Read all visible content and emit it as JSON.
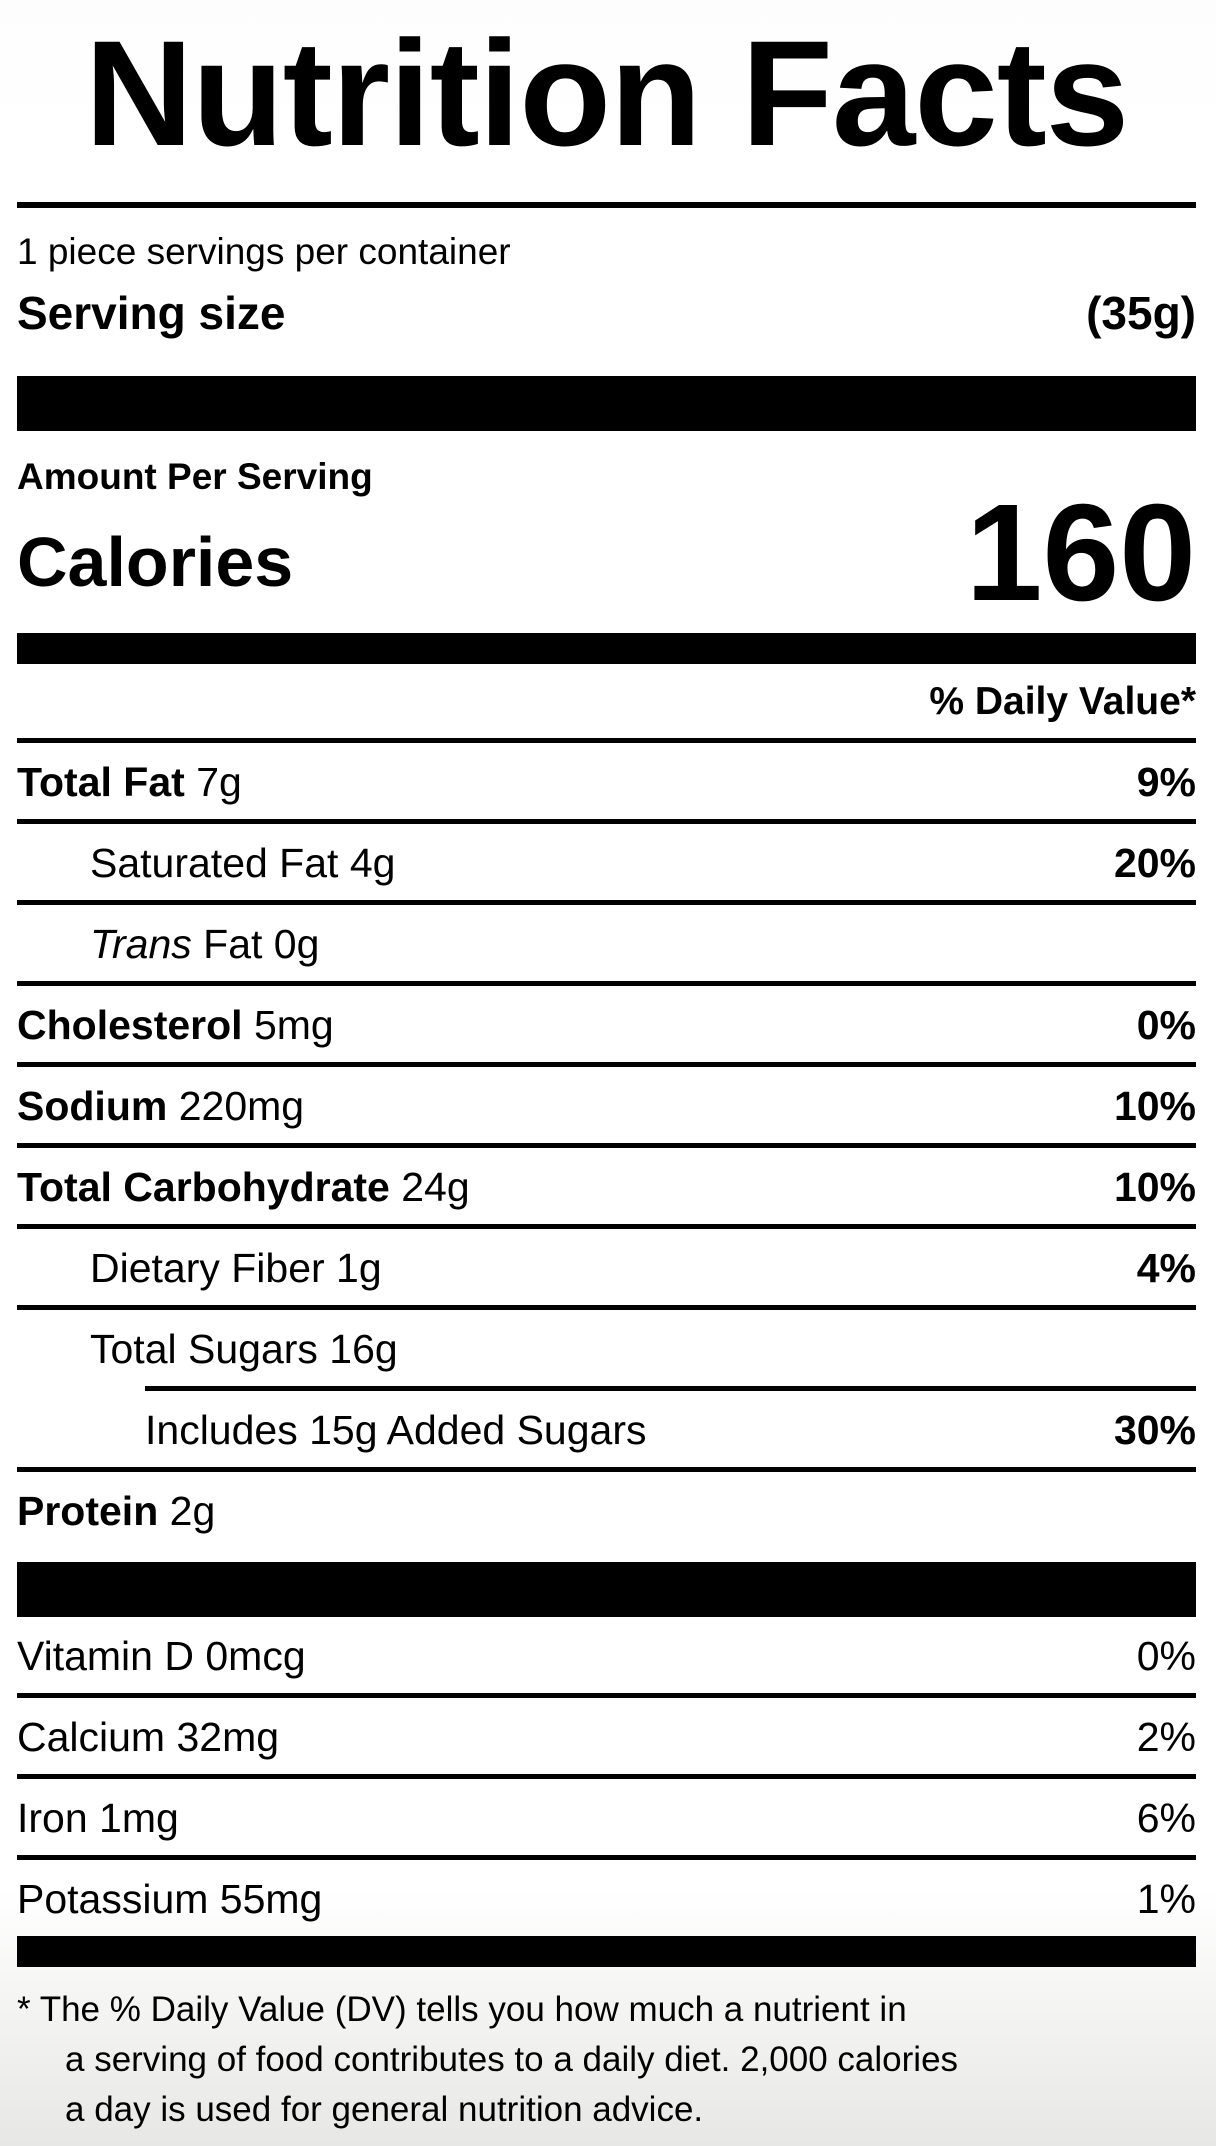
{
  "label": {
    "title": "Nutrition Facts",
    "servings_per_container": "1 piece servings per container",
    "serving_size_label": "Serving size",
    "serving_size_value": "(35g)",
    "amount_per_serving": "Amount Per Serving",
    "calories_label": "Calories",
    "calories_value": "160",
    "daily_value_header": "% Daily Value*",
    "rows": [
      {
        "bold": "Total Fat",
        "rest": " 7g",
        "dv": "9%"
      },
      {
        "bold": "",
        "rest": "Saturated Fat 4g",
        "dv": "20%"
      },
      {
        "bold": "",
        "italic": "Trans",
        "rest": " Fat 0g",
        "dv": ""
      },
      {
        "bold": "Cholesterol",
        "rest": " 5mg",
        "dv": "0%"
      },
      {
        "bold": "Sodium",
        "rest": " 220mg",
        "dv": "10%"
      },
      {
        "bold": "Total Carbohydrate",
        "rest": " 24g",
        "dv": "10%"
      },
      {
        "bold": "",
        "rest": "Dietary Fiber 1g",
        "dv": "4%"
      },
      {
        "bold": "",
        "rest": "Total Sugars 16g",
        "dv": ""
      },
      {
        "bold": "",
        "rest": "Includes 15g Added Sugars",
        "dv": "30%"
      },
      {
        "bold": "Protein",
        "rest": " 2g",
        "dv": ""
      }
    ],
    "vitamins": [
      {
        "name": "Vitamin D 0mcg",
        "dv": "0%"
      },
      {
        "name": "Calcium 32mg",
        "dv": "2%"
      },
      {
        "name": "Iron 1mg",
        "dv": "6%"
      },
      {
        "name": "Potassium 55mg",
        "dv": "1%"
      }
    ],
    "footnote_line1": "* The % Daily Value (DV) tells you how much a nutrient in",
    "footnote_line2": "a serving of food contributes to a daily diet. 2,000 calories",
    "footnote_line3": "a day is used for general nutrition advice.",
    "colors": {
      "ink": "#000000",
      "background": "#ffffff",
      "background_fade": "#e7e7e5"
    }
  }
}
